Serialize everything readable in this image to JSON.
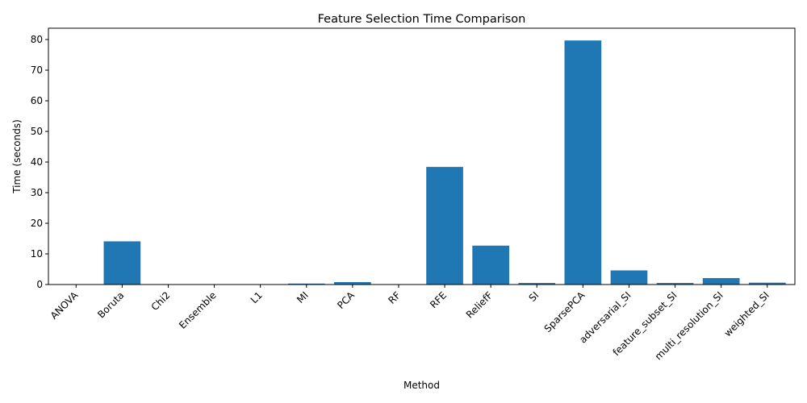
{
  "chart_data": {
    "type": "bar",
    "title": "Feature Selection Time Comparison",
    "xlabel": "Method",
    "ylabel": "Time (seconds)",
    "categories": [
      "ANOVA",
      "Boruta",
      "Chi2",
      "Ensemble",
      "L1",
      "MI",
      "PCA",
      "RF",
      "RFE",
      "ReliefF",
      "SI",
      "SparsePCA",
      "adversarial_SI",
      "feature_subset_SI",
      "multi_resolution_SI",
      "weighted_SI"
    ],
    "values": [
      0.02,
      14.1,
      0.02,
      0.05,
      0.03,
      0.3,
      0.8,
      0.1,
      38.4,
      12.7,
      0.5,
      79.7,
      4.6,
      0.5,
      2.1,
      0.6
    ],
    "ylim": [
      0,
      83.7
    ],
    "yticks": [
      0,
      10,
      20,
      30,
      40,
      50,
      60,
      70,
      80
    ],
    "grid": false,
    "bar_color": "#1f77b4"
  }
}
